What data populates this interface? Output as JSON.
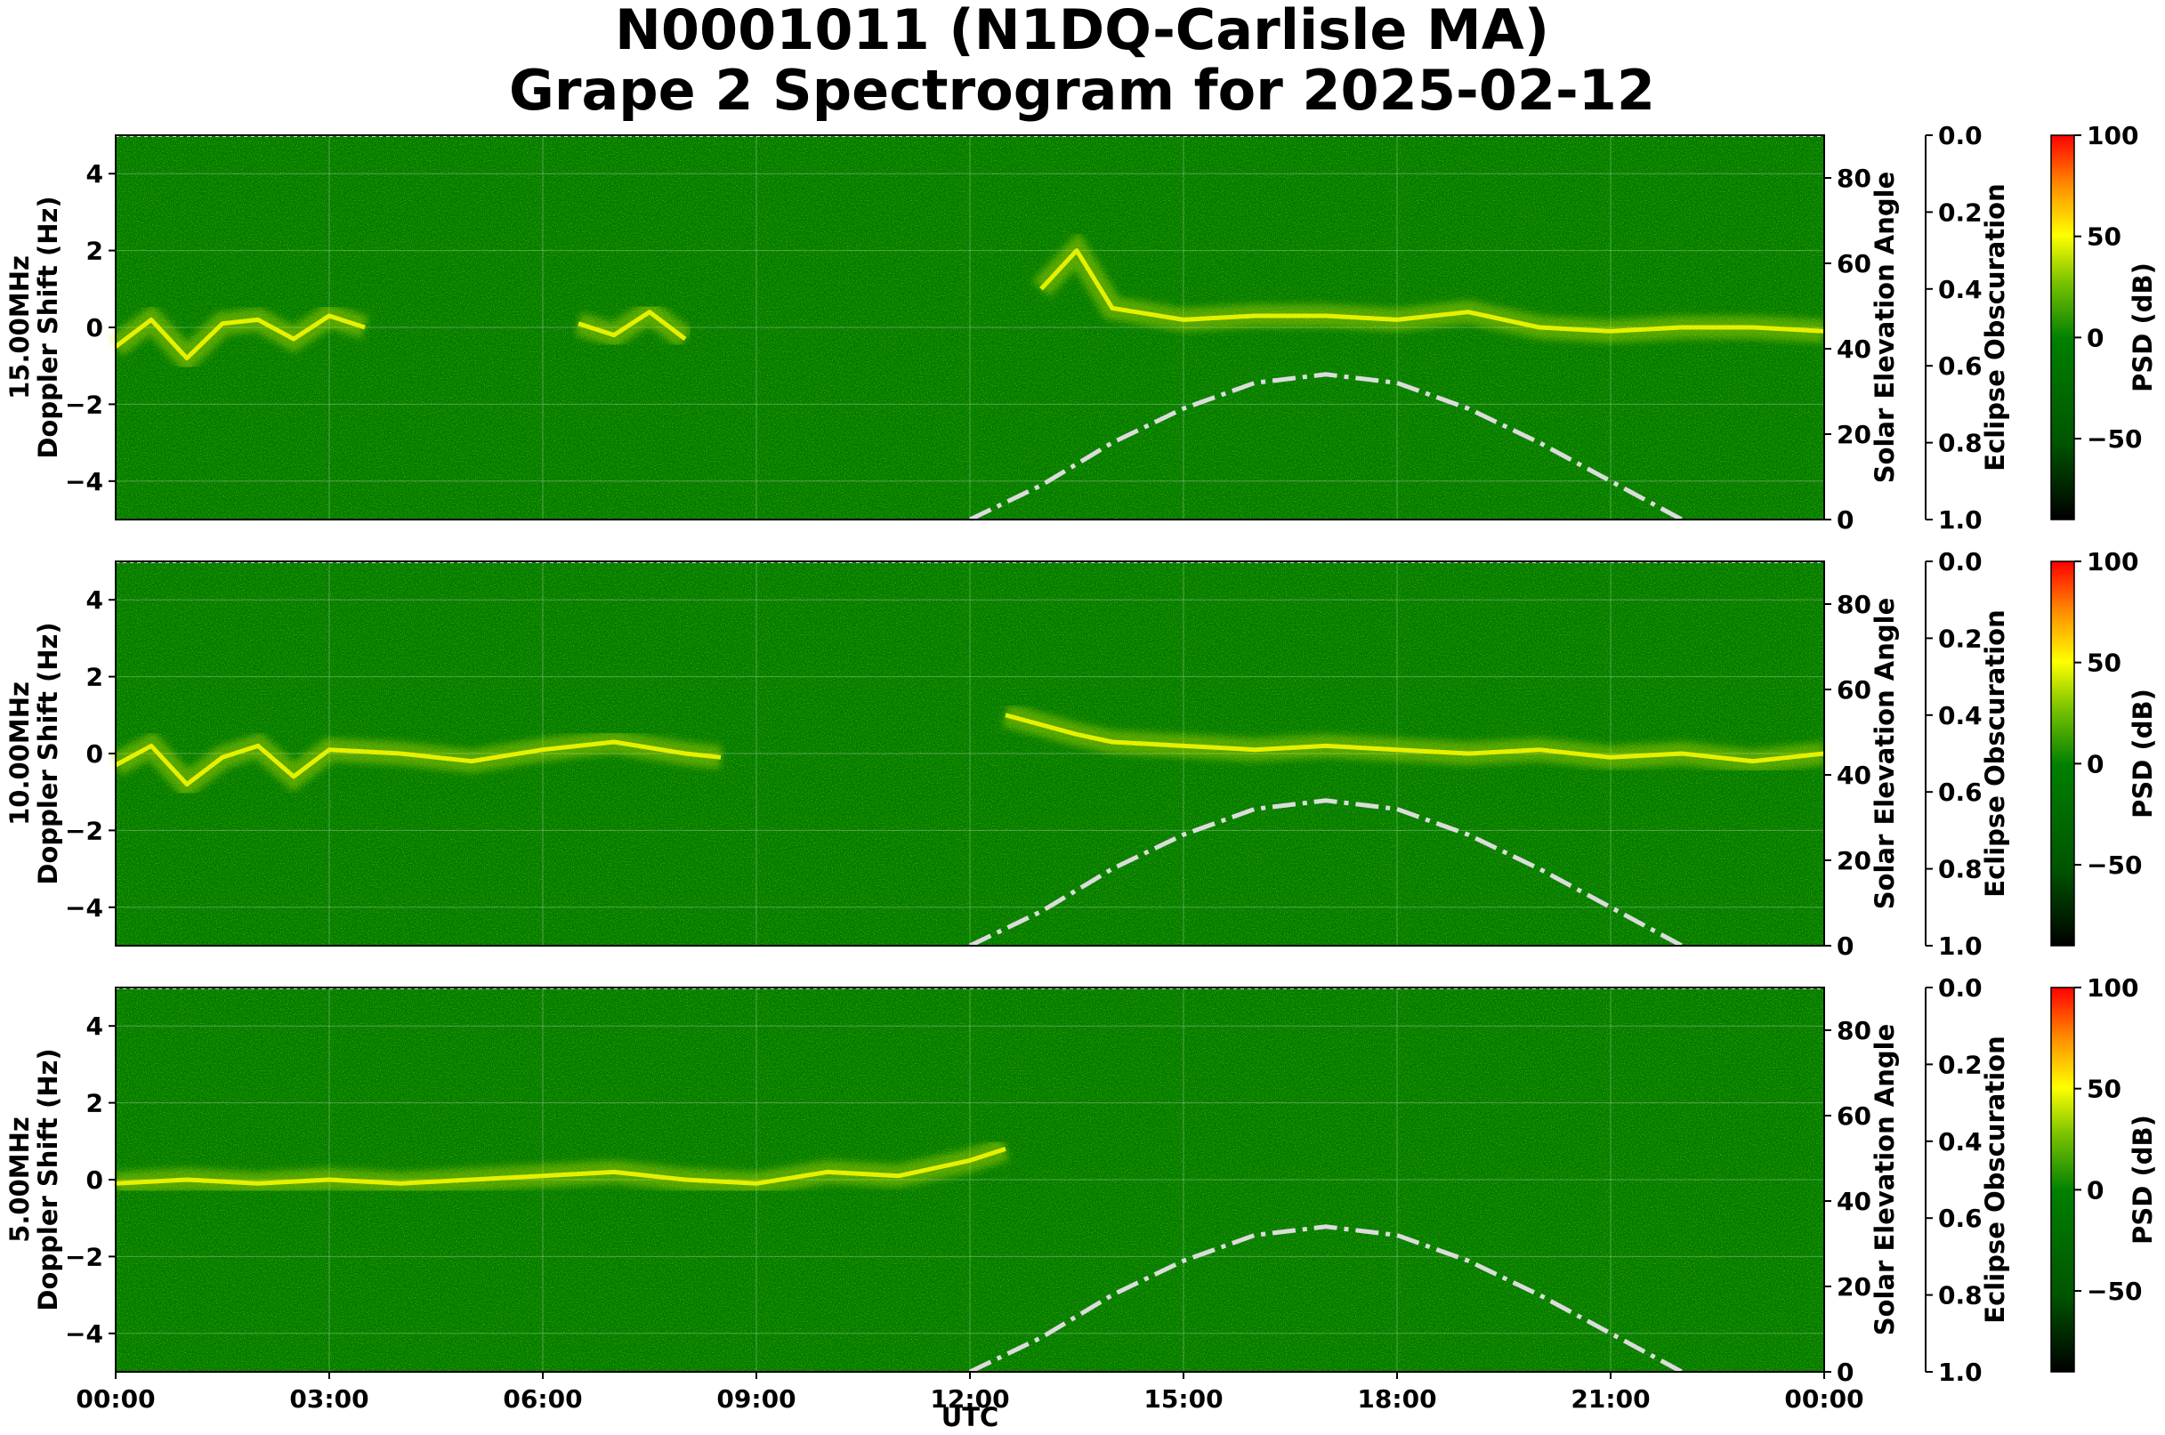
{
  "title": {
    "line1": "N0001011 (N1DQ-Carlisle MA)",
    "line2": "Grape 2 Spectrogram for 2025-02-12"
  },
  "colors": {
    "background": "#007a00",
    "trace": "#e6f000",
    "hot": "#ff3b00",
    "solar_curve": "#dcdcdc",
    "colormap": [
      "#000000",
      "#006e00",
      "#008000",
      "#80c800",
      "#ffff00",
      "#ff8000",
      "#ff0000"
    ]
  },
  "chart_data": [
    {
      "type": "heatmap",
      "panel": "15.00MHz",
      "ylabel_line1": "15.00MHz",
      "ylabel_line2": "Doppler Shift (Hz)",
      "ylim": [
        -5,
        5
      ],
      "yticks": [
        "4",
        "2",
        "0",
        "−2",
        "−4"
      ],
      "right_axis_label": "Solar Elevation Angle",
      "right_ylim": [
        0,
        90
      ],
      "right_ticks": [
        "0",
        "20",
        "40",
        "60",
        "80"
      ],
      "eclipse_label": "Eclipse Obscuration",
      "eclipse_ylim": [
        1.0,
        0.0
      ],
      "eclipse_ticks": [
        "0.0",
        "0.2",
        "0.4",
        "0.6",
        "0.8",
        "1.0"
      ],
      "colorbar_label": "PSD (dB)",
      "colorbar_range": [
        -90,
        100
      ],
      "colorbar_ticks": [
        "100",
        "50",
        "0",
        "−50"
      ],
      "grid": true,
      "trace": {
        "hours": [
          0,
          0.5,
          1,
          1.5,
          2,
          2.5,
          3,
          3.5,
          6.5,
          7,
          7.5,
          8,
          13,
          13.5,
          14,
          15,
          16,
          17,
          18,
          19,
          20,
          21,
          22,
          23,
          24
        ],
        "doppler_hz": [
          -0.5,
          0.2,
          -0.8,
          0.1,
          0.2,
          -0.3,
          0.3,
          0,
          0.1,
          -0.2,
          0.4,
          -0.3,
          1.0,
          2.0,
          0.5,
          0.2,
          0.3,
          0.3,
          0.2,
          0.4,
          0.0,
          -0.1,
          0.0,
          0.0,
          -0.1
        ],
        "breaks_after_hour": [
          3.5,
          8
        ]
      },
      "solar_elevation": {
        "hours": [
          12,
          13,
          14,
          15,
          16,
          17,
          18,
          19,
          20,
          21,
          22
        ],
        "degrees": [
          0,
          8,
          18,
          26,
          32,
          34,
          32,
          26,
          18,
          9,
          0
        ]
      }
    },
    {
      "type": "heatmap",
      "panel": "10.00MHz",
      "ylabel_line1": "10.00MHz",
      "ylabel_line2": "Doppler Shift (Hz)",
      "ylim": [
        -5,
        5
      ],
      "yticks": [
        "4",
        "2",
        "0",
        "−2",
        "−4"
      ],
      "right_axis_label": "Solar Elevation Angle",
      "right_ylim": [
        0,
        90
      ],
      "right_ticks": [
        "0",
        "20",
        "40",
        "60",
        "80"
      ],
      "eclipse_label": "Eclipse Obscuration",
      "eclipse_ylim": [
        1.0,
        0.0
      ],
      "eclipse_ticks": [
        "0.0",
        "0.2",
        "0.4",
        "0.6",
        "0.8",
        "1.0"
      ],
      "colorbar_label": "PSD (dB)",
      "colorbar_range": [
        -90,
        100
      ],
      "colorbar_ticks": [
        "100",
        "50",
        "0",
        "−50"
      ],
      "grid": true,
      "trace": {
        "hours": [
          0,
          0.5,
          1,
          1.5,
          2,
          2.5,
          3,
          4,
          5,
          6,
          7,
          8,
          8.5,
          12.5,
          13.5,
          14,
          15,
          16,
          17,
          18,
          19,
          20,
          21,
          22,
          23,
          24
        ],
        "doppler_hz": [
          -0.3,
          0.2,
          -0.8,
          -0.1,
          0.2,
          -0.6,
          0.1,
          0.0,
          -0.2,
          0.1,
          0.3,
          0.0,
          -0.1,
          1.0,
          0.5,
          0.3,
          0.2,
          0.1,
          0.2,
          0.1,
          0.0,
          0.1,
          -0.1,
          0.0,
          -0.2,
          0.0
        ],
        "breaks_after_hour": [
          8.5
        ]
      },
      "solar_elevation": {
        "hours": [
          12,
          13,
          14,
          15,
          16,
          17,
          18,
          19,
          20,
          21,
          22
        ],
        "degrees": [
          0,
          8,
          18,
          26,
          32,
          34,
          32,
          26,
          18,
          9,
          0
        ]
      }
    },
    {
      "type": "heatmap",
      "panel": "5.00MHz",
      "ylabel_line1": "5.00MHz",
      "ylabel_line2": "Doppler Shift (Hz)",
      "ylim": [
        -5,
        5
      ],
      "yticks": [
        "4",
        "2",
        "0",
        "−2",
        "−4"
      ],
      "right_axis_label": "Solar Elevation Angle",
      "right_ylim": [
        0,
        90
      ],
      "right_ticks": [
        "0",
        "20",
        "40",
        "60",
        "80"
      ],
      "eclipse_label": "Eclipse Obscuration",
      "eclipse_ylim": [
        1.0,
        0.0
      ],
      "eclipse_ticks": [
        "0.0",
        "0.2",
        "0.4",
        "0.6",
        "0.8",
        "1.0"
      ],
      "colorbar_label": "PSD (dB)",
      "colorbar_range": [
        -90,
        100
      ],
      "colorbar_ticks": [
        "100",
        "50",
        "0",
        "−50"
      ],
      "grid": true,
      "trace": {
        "hours": [
          0,
          1,
          2,
          3,
          4,
          5,
          6,
          7,
          8,
          9,
          10,
          11,
          12,
          12.5
        ],
        "doppler_hz": [
          -0.1,
          0.0,
          -0.1,
          0.0,
          -0.1,
          0.0,
          0.1,
          0.2,
          0.0,
          -0.1,
          0.2,
          0.1,
          0.5,
          0.8
        ],
        "breaks_after_hour": []
      },
      "solar_elevation": {
        "hours": [
          12,
          13,
          14,
          15,
          16,
          17,
          18,
          19,
          20,
          21,
          22
        ],
        "degrees": [
          0,
          8,
          18,
          26,
          32,
          34,
          32,
          26,
          18,
          9,
          0
        ]
      }
    }
  ],
  "x_axis": {
    "label": "UTC",
    "range_hours": [
      0,
      24
    ],
    "ticks": [
      "00:00",
      "03:00",
      "06:00",
      "09:00",
      "12:00",
      "15:00",
      "18:00",
      "21:00",
      "00:00"
    ]
  }
}
